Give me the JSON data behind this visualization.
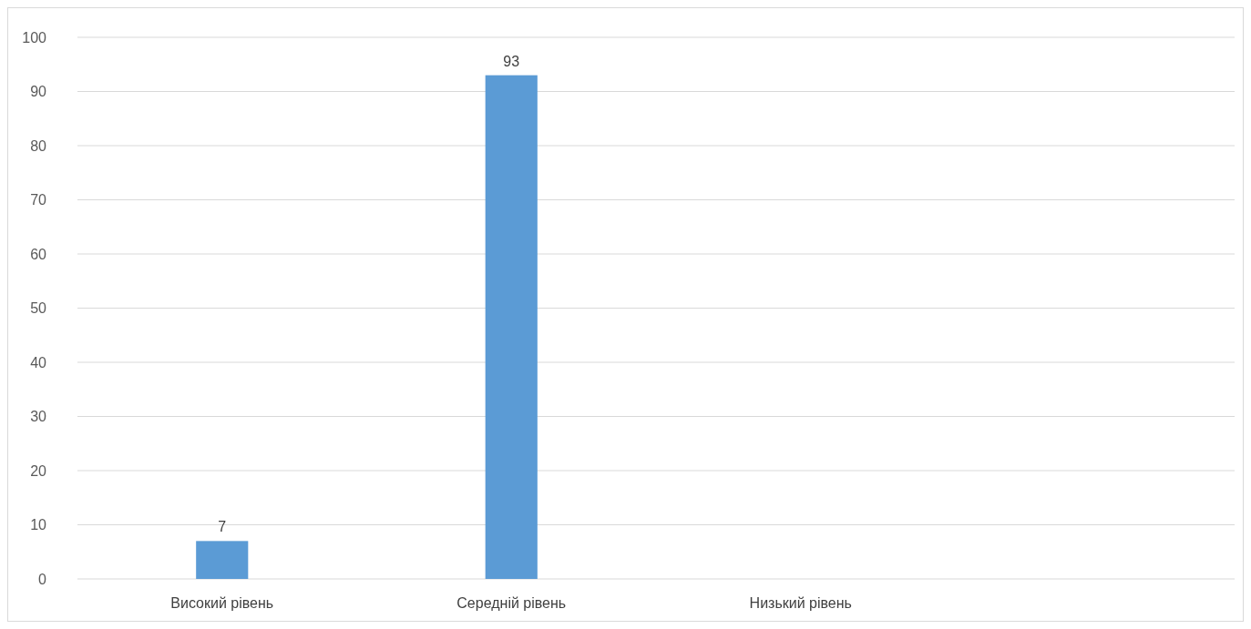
{
  "chart_data": {
    "type": "bar",
    "categories": [
      "Високий рівень",
      "Середній рівень",
      "Низький рівень",
      null
    ],
    "values": [
      7,
      93,
      null,
      null
    ],
    "color": "#5b9bd5",
    "ylim": [
      0,
      100
    ],
    "yticks": [
      0,
      10,
      20,
      30,
      40,
      50,
      60,
      70,
      80,
      90,
      100
    ],
    "grid": "y",
    "data_labels": true
  }
}
